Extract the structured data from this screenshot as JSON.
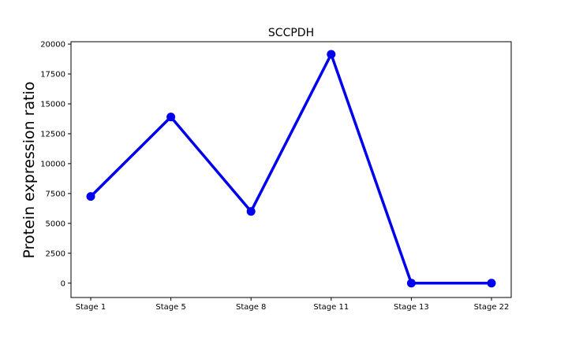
{
  "chart_data": {
    "type": "line",
    "title": "SCCPDH",
    "xlabel": "",
    "ylabel": "Protein expression ratio",
    "categories": [
      "Stage 1",
      "Stage 5",
      "Stage 8",
      "Stage 11",
      "Stage 13",
      "Stage 22"
    ],
    "series": [
      {
        "values": [
          7250,
          13900,
          6000,
          19150,
          0,
          0
        ],
        "color": "#0000ee"
      }
    ],
    "ylim": [
      -1200,
      20200
    ],
    "yticks": [
      0,
      2500,
      5000,
      7500,
      10000,
      12500,
      15000,
      17500,
      20000
    ],
    "ytick_labels": [
      "0",
      "2500",
      "5000",
      "7500",
      "10000",
      "12500",
      "15000",
      "17500",
      "20000"
    ],
    "grid": false,
    "legend": "none"
  }
}
